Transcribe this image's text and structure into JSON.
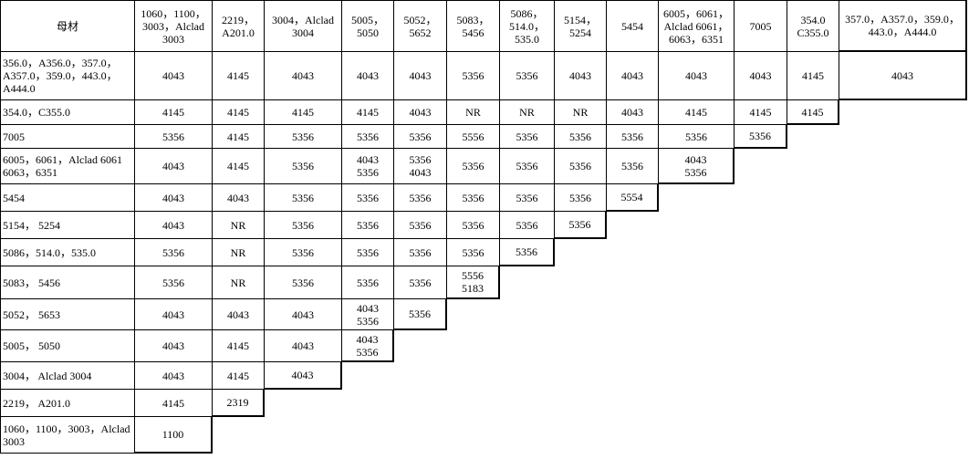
{
  "table": {
    "header": [
      "母材",
      "1060，1100，3003，Alclad 3003",
      "2219，A201.0",
      "3004，Alclad 3004",
      "5005，5050",
      "5052，5652",
      "5083，5456",
      "5086，514.0，535.0",
      "5154，5254",
      "5454",
      "6005，6061，Alclad 6061，6063，6351",
      "7005",
      "354.0 C355.0",
      "357.0，A357.0，359.0，443.0，A444.0"
    ],
    "rows": [
      {
        "label": "356.0，A356.0，357.0，A357.0，359.0，443.0，A444.0",
        "values": [
          "4043",
          "4145",
          "4043",
          "4043",
          "4043",
          "5356",
          "5356",
          "4043",
          "4043",
          "4043",
          "4043",
          "4145",
          "4043"
        ]
      },
      {
        "label": "354.0，C355.0",
        "values": [
          "4145",
          "4145",
          "4145",
          "4145",
          "4043",
          "NR",
          "NR",
          "NR",
          "4043",
          "4145",
          "4145",
          "4145"
        ]
      },
      {
        "label": "7005",
        "values": [
          "5356",
          "4145",
          "5356",
          "5356",
          "5356",
          "5556",
          "5356",
          "5356",
          "5356",
          "5356",
          "5356"
        ]
      },
      {
        "label": "6005，6061，Alclad 6061 6063，6351",
        "values": [
          "4043",
          "4145",
          "5356",
          "4043\n5356",
          "5356\n4043",
          "5356",
          "5356",
          "5356",
          "5356",
          "4043\n5356"
        ]
      },
      {
        "label": "5454",
        "values": [
          "4043",
          "4043",
          "5356",
          "5356",
          "5356",
          "5356",
          "5356",
          "5356",
          "5554"
        ]
      },
      {
        "label": "5154， 5254",
        "values": [
          "4043",
          "NR",
          "5356",
          "5356",
          "5356",
          "5356",
          "5356",
          "5356"
        ]
      },
      {
        "label": "5086，514.0，535.0",
        "values": [
          "5356",
          "NR",
          "5356",
          "5356",
          "5356",
          "5356",
          "5356"
        ]
      },
      {
        "label": "5083， 5456",
        "values": [
          "5356",
          "NR",
          "5356",
          "5356",
          "5356",
          "5556\n5183"
        ]
      },
      {
        "label": "5052， 5653",
        "values": [
          "4043",
          "4043",
          "4043",
          "4043\n5356",
          "5356"
        ]
      },
      {
        "label": "5005， 5050",
        "values": [
          "4043",
          "4145",
          "4043",
          "4043\n5356"
        ]
      },
      {
        "label": "3004， Alclad 3004",
        "values": [
          "4043",
          "4145",
          "4043"
        ]
      },
      {
        "label": "2219， A201.0",
        "values": [
          "4145",
          "2319"
        ]
      },
      {
        "label": "1060，1100，3003，Alclad 3003",
        "values": [
          "1100"
        ]
      }
    ]
  }
}
